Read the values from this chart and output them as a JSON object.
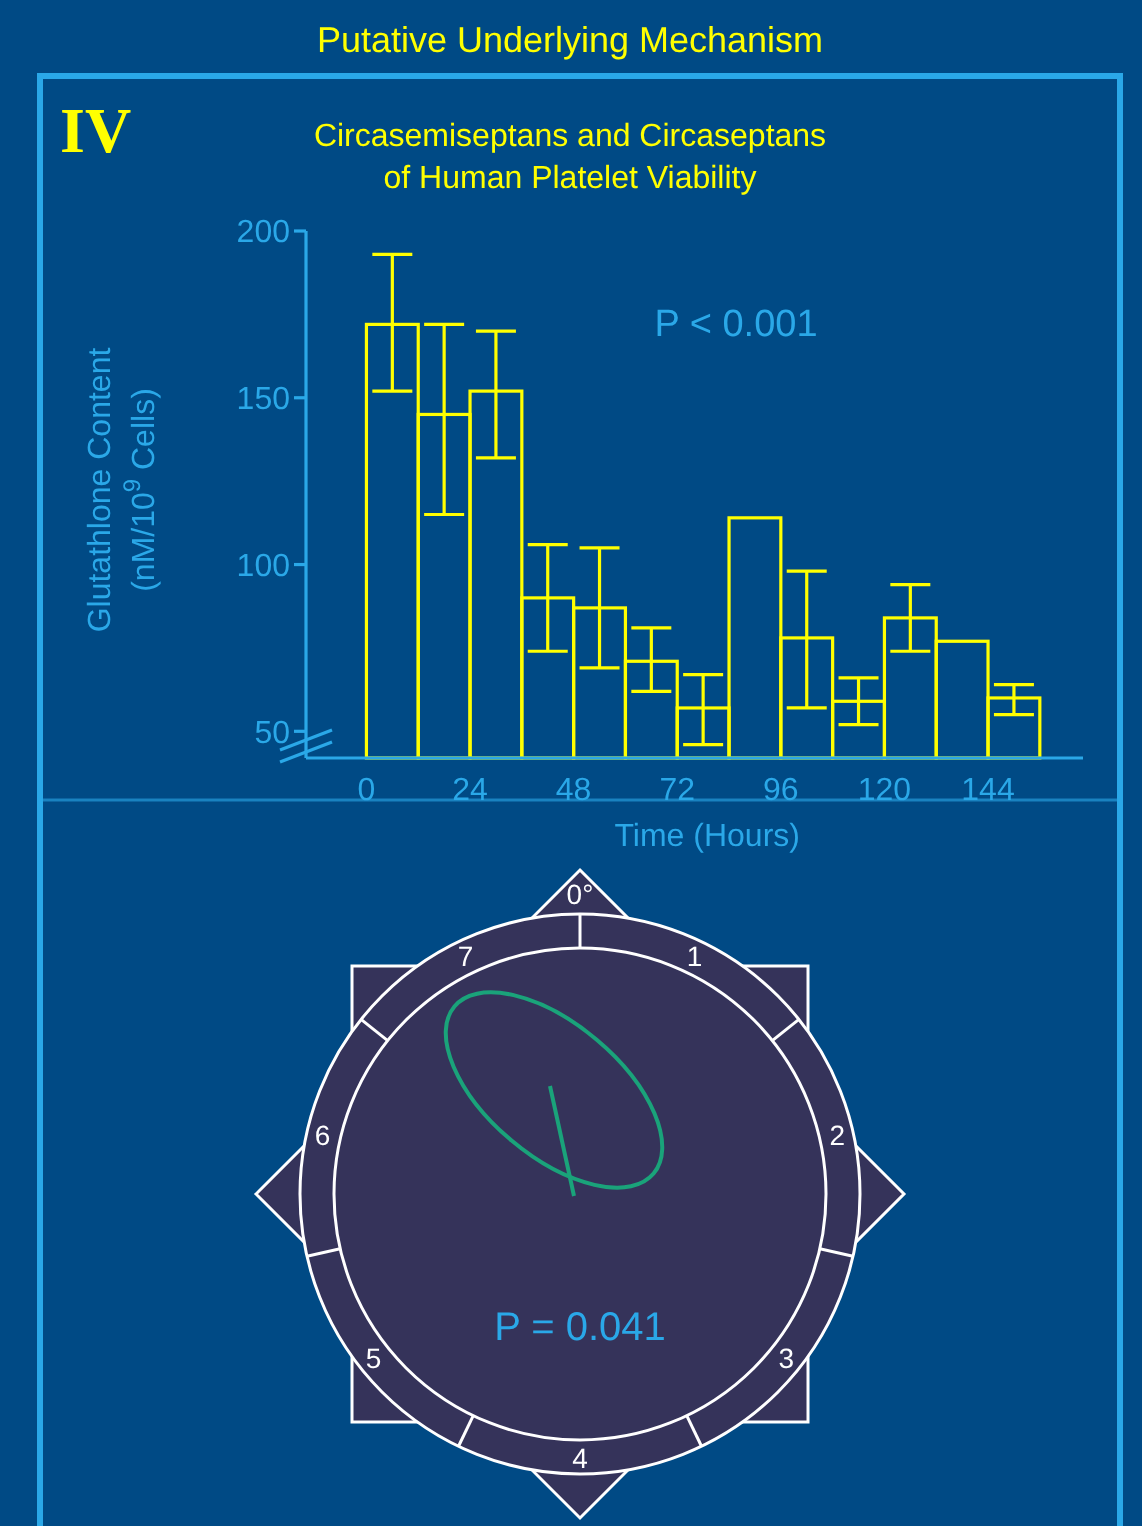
{
  "chart_data": [
    {
      "type": "histogram",
      "title": "Circasemiseptans and Circaseptans\nof Human Platelet Viability",
      "xlabel": "Time (Hours)",
      "ylabel": "Glutathlone Content\n(nM/10$^{9}$ Cells)",
      "annotations": [
        "Putative Underlying Mechanism",
        "IV",
        "P < 0.001"
      ],
      "bins": [
        0,
        12,
        24,
        36,
        48,
        60,
        72,
        84,
        96,
        108,
        120,
        132,
        144,
        156
      ],
      "values": [
        172,
        145,
        152,
        90,
        87,
        71,
        57,
        114,
        78,
        59,
        84,
        77,
        60
      ],
      "errors": [
        [
          152,
          193
        ],
        [
          115,
          172
        ],
        [
          132,
          170
        ],
        [
          74,
          106
        ],
        [
          69,
          105
        ],
        [
          62,
          81
        ],
        [
          46,
          67
        ],
        null,
        [
          57,
          98
        ],
        [
          52,
          66
        ],
        [
          74,
          94
        ],
        null,
        [
          55,
          64
        ]
      ],
      "color": "#ffff00",
      "xlim": [
        -14,
        166
      ],
      "ylim": [
        42,
        200
      ],
      "xticks": [
        0,
        24,
        48,
        72,
        96,
        120,
        144
      ],
      "yticks": [
        50,
        100,
        150,
        200
      ],
      "grid": false
    },
    {
      "type": "other",
      "categories": [
        "0°",
        "1",
        "2",
        "3",
        "4",
        "5",
        "6",
        "7"
      ],
      "annotations": [
        "P = 0.041"
      ]
    }
  ]
}
